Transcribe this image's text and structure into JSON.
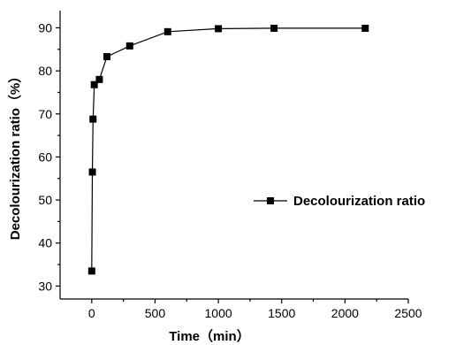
{
  "chart_data": {
    "type": "line",
    "xlabel": "Time（min）",
    "ylabel": "Decolourization ratio（%）",
    "xlim": [
      -250,
      2500
    ],
    "ylim": [
      27,
      94
    ],
    "xticks": [
      0,
      500,
      1000,
      1500,
      2000,
      2500
    ],
    "yticks": [
      30,
      40,
      50,
      60,
      70,
      80,
      90
    ],
    "legend_position": "right",
    "series": [
      {
        "name": "Decolourization ratio",
        "x": [
          0,
          5,
          10,
          20,
          60,
          120,
          300,
          600,
          1000,
          1440,
          2160
        ],
        "y": [
          33.5,
          56.5,
          68.8,
          76.8,
          78.0,
          83.3,
          85.8,
          89.1,
          89.8,
          89.9,
          89.9
        ]
      }
    ]
  }
}
